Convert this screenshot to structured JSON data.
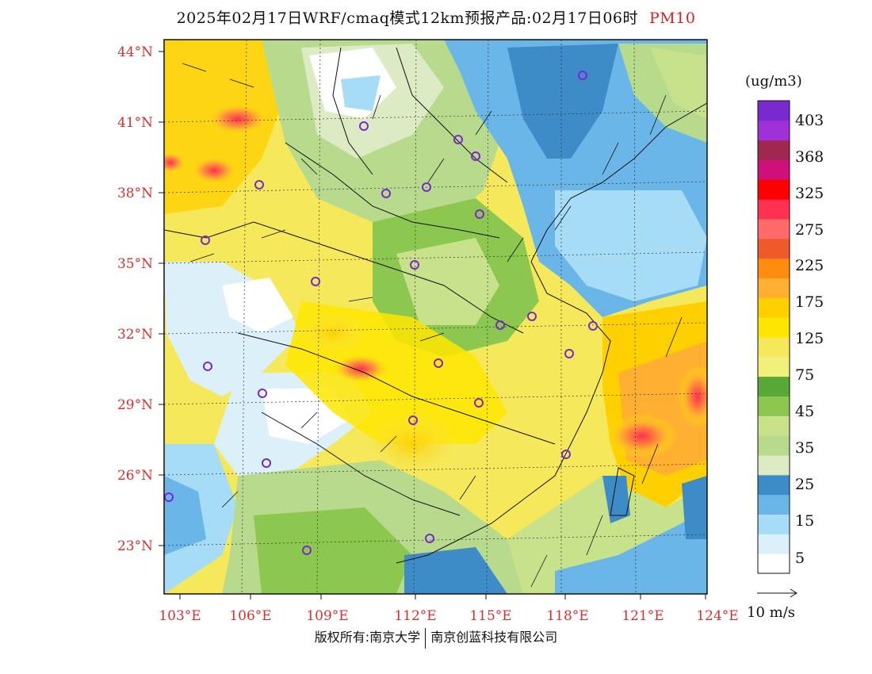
{
  "title": {
    "main": "2025年02月17日WRF/cmaq模式12km预报产品:02月17日06时",
    "variable": "PM10"
  },
  "map": {
    "lat_labels": [
      "44°N",
      "41°N",
      "38°N",
      "35°N",
      "32°N",
      "29°N",
      "26°N",
      "23°N"
    ],
    "lon_labels": [
      "103°E",
      "106°E",
      "109°E",
      "112°E",
      "115°E",
      "118°E",
      "121°E",
      "124°E"
    ]
  },
  "colorbar": {
    "unit": "(ug/m3)",
    "colors": [
      "#ffffff",
      "#dcf0fa",
      "#a6dcf5",
      "#6bb6e8",
      "#3d8cc8",
      "#dcebc4",
      "#b8da8c",
      "#c7e28a",
      "#8cc850",
      "#58a838",
      "#f0f07a",
      "#f5e85a",
      "#ffe600",
      "#ffd000",
      "#ffb030",
      "#ff8c10",
      "#f05a28",
      "#ff6a6a",
      "#ff3050",
      "#ff0000",
      "#d0107a",
      "#a02850",
      "#a030d8",
      "#7a28d0"
    ],
    "labels": [
      "5",
      "15",
      "25",
      "35",
      "45",
      "75",
      "125",
      "175",
      "225",
      "275",
      "325",
      "368",
      "403"
    ]
  },
  "legend": {
    "wind_ref": "10 m/s"
  },
  "footer": {
    "left": "版权所有:南京大学",
    "right": "南京创蓝科技有限公司"
  }
}
